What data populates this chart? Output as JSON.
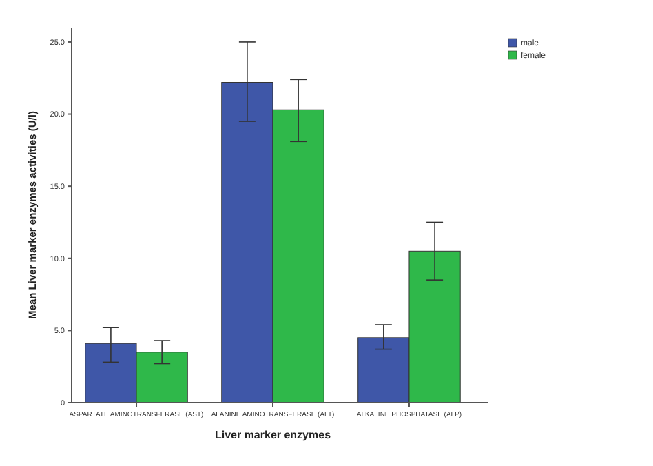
{
  "chart_data": {
    "type": "bar",
    "xlabel": "Liver marker enzymes",
    "ylabel": "Mean Liver marker enzymes activities  (U/l)",
    "categories": [
      "ASPARTATE AMINOTRANSFERASE (AST)",
      "ALANINE AMINOTRANSFERASE (ALT)",
      "ALKALINE PHOSPHATASE (ALP)"
    ],
    "series": [
      {
        "name": "male",
        "color": "#3f57a8",
        "values": [
          4.1,
          22.2,
          4.5
        ],
        "errors": [
          [
            2.8,
            5.2
          ],
          [
            19.5,
            25.0
          ],
          [
            3.7,
            5.4
          ]
        ]
      },
      {
        "name": "female",
        "color": "#2fb84a",
        "values": [
          3.5,
          20.3,
          10.5
        ],
        "errors": [
          [
            2.7,
            4.3
          ],
          [
            18.1,
            22.4
          ],
          [
            8.5,
            12.5
          ]
        ]
      }
    ],
    "ylim": [
      0,
      26
    ],
    "yticks": [
      {
        "value": 0,
        "label": "0"
      },
      {
        "value": 5,
        "label": "5.0"
      },
      {
        "value": 10,
        "label": "10.0"
      },
      {
        "value": 15,
        "label": "15.0"
      },
      {
        "value": 20,
        "label": "20.0"
      },
      {
        "value": 25,
        "label": "25.0"
      }
    ],
    "legend": "top right"
  }
}
